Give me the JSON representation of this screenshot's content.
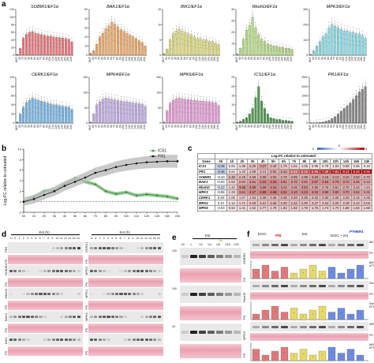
{
  "figure": {
    "panel_labels": {
      "a": "a",
      "b": "b",
      "c": "c",
      "d": "d",
      "e": "e",
      "f": "f"
    }
  },
  "panel_a": {
    "x_ticks": [
      "UNT",
      "0h",
      "1h",
      "2h",
      "3h",
      "4h",
      "5h",
      "6h",
      "7h",
      "8h",
      "9h",
      "10h",
      "11h",
      "12h",
      "13h",
      "14h",
      "15h",
      "16h",
      "24h"
    ],
    "x_tick_short": [
      "UNT",
      "0h",
      "",
      "2h",
      "",
      "4h",
      "",
      "6h",
      "",
      "8h",
      "",
      "10h",
      "",
      "12h",
      "",
      "14h",
      "",
      "16h",
      "24h"
    ],
    "charts": [
      {
        "title": "SOBIR1/EF1α",
        "color": "#e46a6f",
        "ylim": [
          0,
          120
        ],
        "y_ticks": [
          "0",
          "20",
          "40",
          "60",
          "80",
          "100",
          "120"
        ],
        "values": [
          2,
          18,
          45,
          55,
          60,
          62,
          58,
          56,
          54,
          52,
          50,
          50,
          48,
          47,
          46,
          45,
          44,
          42,
          35
        ]
      },
      {
        "title": "BAK1/EF1α",
        "color": "#eba05a",
        "ylim": [
          0,
          50
        ],
        "y_ticks": [
          "0",
          "10",
          "20",
          "30",
          "40",
          "50"
        ],
        "values": [
          2,
          5,
          12,
          20,
          24,
          29,
          32,
          36,
          34,
          31,
          28,
          26,
          24,
          22,
          20,
          18,
          16,
          14,
          10
        ]
      },
      {
        "title": "BIK1/EF1α",
        "color": "#d9d770",
        "ylim": [
          0,
          15
        ],
        "y_ticks": [
          "0",
          "5",
          "10",
          "15"
        ],
        "values": [
          0.5,
          2,
          5,
          7,
          8,
          8.5,
          8,
          7.5,
          7,
          6.5,
          6,
          5.5,
          5.5,
          5,
          5,
          4.5,
          4.5,
          4,
          3.5
        ]
      },
      {
        "title": "RbohD/EF1α",
        "color": "#b0d97a",
        "ylim": [
          0,
          40
        ],
        "y_ticks": [
          "0",
          "10",
          "20",
          "30",
          "40"
        ],
        "values": [
          1,
          6,
          14,
          22,
          26,
          33,
          24,
          18,
          14,
          12,
          10,
          9,
          8,
          8,
          7,
          7,
          6,
          6,
          5
        ]
      },
      {
        "title": "MPK3/EF1α",
        "color": "#7fd6e0",
        "ylim": [
          0,
          300
        ],
        "y_ticks": [
          "0",
          "100",
          "200",
          "300"
        ],
        "values": [
          5,
          30,
          60,
          90,
          120,
          140,
          180,
          200,
          190,
          180,
          170,
          160,
          160,
          150,
          150,
          140,
          140,
          130,
          110
        ]
      },
      {
        "title": "CERK1/EF1α",
        "color": "#67aedf",
        "ylim": [
          0,
          100
        ],
        "y_ticks": [
          "0",
          "20",
          "40",
          "60",
          "80",
          "100"
        ],
        "values": [
          2,
          20,
          35,
          45,
          50,
          55,
          52,
          50,
          48,
          46,
          44,
          42,
          40,
          40,
          38,
          37,
          36,
          35,
          30
        ]
      },
      {
        "title": "MPK4/EF1α",
        "color": "#b9a4e0",
        "ylim": [
          0,
          150
        ],
        "y_ticks": [
          "0",
          "50",
          "100",
          "150"
        ],
        "values": [
          3,
          30,
          60,
          70,
          78,
          82,
          80,
          78,
          76,
          74,
          72,
          70,
          70,
          68,
          66,
          65,
          64,
          62,
          55
        ]
      },
      {
        "title": "MPK6/EF1α",
        "color": "#e08fd0",
        "ylim": [
          0,
          150
        ],
        "y_ticks": [
          "0",
          "50",
          "100",
          "150"
        ],
        "values": [
          3,
          40,
          65,
          75,
          80,
          82,
          80,
          78,
          77,
          76,
          75,
          74,
          72,
          72,
          70,
          70,
          68,
          66,
          58
        ]
      },
      {
        "title": "ICS1/EF1α",
        "color": "#3f8f3f",
        "ylim": [
          0,
          25
        ],
        "y_ticks": [
          "0",
          "5",
          "10",
          "15",
          "20",
          "25"
        ],
        "values": [
          0.5,
          1,
          2,
          3,
          5,
          8,
          14,
          20,
          12,
          8,
          5,
          3,
          2.5,
          2,
          2,
          1.5,
          1.5,
          1.2,
          1
        ]
      },
      {
        "title": "PR1/EF1α",
        "color": "#7a7a7a",
        "ylim": [
          0,
          2500
        ],
        "y_ticks": [
          "0",
          "500",
          "1000",
          "1500",
          "2000",
          "2500"
        ],
        "values": [
          5,
          10,
          20,
          40,
          60,
          100,
          150,
          250,
          350,
          500,
          650,
          800,
          950,
          1100,
          1300,
          1500,
          1700,
          1850,
          2000
        ]
      }
    ]
  },
  "panel_b": {
    "ylabel": "Log₂FC relative to untreated",
    "x_ticks": [
      "0h",
      "1h",
      "2h",
      "3h",
      "4h",
      "5h",
      "6h",
      "7h",
      "8h",
      "9h",
      "10h",
      "11h",
      "12h",
      "14h",
      "16h",
      "24h"
    ],
    "y_ticks": [
      "-2",
      "0",
      "2",
      "4",
      "6",
      "8",
      "10"
    ],
    "ylim": [
      -2,
      10
    ],
    "series": [
      {
        "name": "ICS1",
        "color": "#3a8a3a",
        "values": [
          0.0,
          0.9,
          2.0,
          2.2,
          3.3,
          4.5,
          3.8,
          3.3,
          2.0,
          1.5,
          1.8,
          1.2,
          1.4,
          1.2,
          1.0,
          0.6
        ]
      },
      {
        "name": "PR1",
        "color": "#111111",
        "values": [
          0.0,
          0.5,
          1.3,
          2.0,
          3.0,
          3.8,
          4.6,
          5.5,
          6.0,
          6.6,
          7.0,
          7.3,
          7.5,
          7.6,
          7.7,
          7.7
        ]
      }
    ]
  },
  "panel_c": {
    "header": "Log₂FC relative to untreated",
    "legend_min": "0",
    "legend_mid": "0",
    "legend_max": "9",
    "columns": [
      "Gene",
      "0h",
      "1h",
      "2h",
      "3h",
      "4h",
      "5h",
      "6h",
      "7h",
      "8h",
      "9h",
      "10h",
      "12h",
      "14h",
      "16h",
      "24h"
    ],
    "rows": [
      {
        "gene": "ICS1",
        "values": [
          "-0.46",
          "0.63",
          "1.36",
          "2.20",
          "3.27",
          "2.42",
          "1.79",
          "1.51",
          "1.05",
          "0.99",
          "0.78",
          "1.04",
          "0.98",
          "0.56",
          "0.49"
        ]
      },
      {
        "gene": "PR1",
        "values": [
          "-0.45",
          "0.64",
          "1.40",
          "1.99",
          "2.13",
          "2.91",
          "3.10",
          "5.43",
          "6.16",
          "6.96",
          "7.38",
          "7.81",
          "8.12",
          "8.48",
          "8.85"
        ]
      },
      {
        "gene": "SOBIR1",
        "values": [
          "-0.10",
          "2.48",
          "2.46",
          "2.58",
          "2.95",
          "3.00",
          "2.78",
          "2.99",
          "2.98",
          "3.33",
          "3.15",
          "3.13",
          "3.10",
          "3.02",
          "2.70"
        ]
      },
      {
        "gene": "BAK1",
        "values": [
          "-0.03",
          "1.54",
          "2.94",
          "3.61",
          "4.23",
          "4.40",
          "3.81",
          "3.70",
          "3.62",
          "4.07",
          "3.94",
          "3.78",
          "3.70",
          "3.45",
          "3.12"
        ]
      },
      {
        "gene": "RbohD",
        "values": [
          "-0.23",
          "1.42",
          "3.89",
          "3.99",
          "3.69",
          "4.14",
          "3.42",
          "3.05",
          "3.63",
          "2.95",
          "2.76",
          "2.81",
          "2.70",
          "2.42",
          "1.94"
        ]
      },
      {
        "gene": "MPK3",
        "values": [
          "-0.08",
          "1.33",
          "3.64",
          "4.27",
          "4.59",
          "4.66",
          "4.31",
          "4.10",
          "4.23",
          "4.04",
          "3.90",
          "3.80",
          "3.70",
          "3.52",
          "3.31"
        ]
      },
      {
        "gene": "CERK1",
        "values": [
          "0.28",
          "1.05",
          "1.57",
          "1.94",
          "2.36",
          "2.46",
          "2.48",
          "2.40",
          "2.36",
          "2.32",
          "2.30",
          "2.26",
          "2.20",
          "2.12",
          "2.00"
        ]
      },
      {
        "gene": "MPK4",
        "values": [
          "0.10",
          "1.14",
          "1.71",
          "2.20",
          "2.21",
          "2.46",
          "2.30",
          "2.32",
          "2.30",
          "2.27",
          "2.24",
          "2.20",
          "2.18",
          "2.12",
          "2.02"
        ]
      },
      {
        "gene": "MPK6",
        "values": [
          "-0.03",
          "0.94",
          "1.31",
          "1.52",
          "1.77",
          "1.79",
          "1.82",
          "1.82",
          "1.78",
          "1.76",
          "1.74",
          "1.70",
          "1.68",
          "1.64",
          "1.58"
        ]
      }
    ]
  },
  "panel_d": {
    "header_left": "Est (h)",
    "header_right": "Est (h)",
    "lanes": [
      "U",
      "0",
      "1",
      "2",
      "3",
      "4",
      "5",
      "6",
      "7",
      "8",
      "9",
      "10",
      "11",
      "12",
      "14",
      "16",
      "24"
    ],
    "left_blots": [
      "PR1",
      "PS",
      "SOBIR1",
      "PS",
      "RbohD",
      "PS",
      "BAK1",
      "PS",
      "BIK1",
      "PS"
    ],
    "right_blots": [
      "CERK1",
      "PS",
      "MPK3",
      "PS",
      "MPK4",
      "PS",
      "MPK6",
      "PS",
      "",
      "PS"
    ]
  },
  "panel_e": {
    "header": "Est",
    "sublabel": "8h",
    "lanes": [
      "0h",
      "1",
      "1/2",
      "1/4",
      "1/8",
      "1/16",
      "1/32"
    ],
    "blots": [
      "SOBIR1",
      "PS",
      "RbohD",
      "PS",
      "MPK3",
      "PS"
    ],
    "mw": [
      "100",
      "",
      "100",
      "",
      "40",
      ""
    ]
  },
  "panel_f": {
    "header_left": "bir2C",
    "header_mid": "Est",
    "header_right": "bir2C + est",
    "tag": "PTHER1",
    "group_left": "P/B",
    "blot_labels": [
      "BIK1",
      "PS",
      "BIK1/ EF1α",
      "RbohD",
      "PS",
      "RbohD/ EF1α",
      "MPK3",
      "PS",
      "MPK3/ EF1α"
    ]
  }
}
